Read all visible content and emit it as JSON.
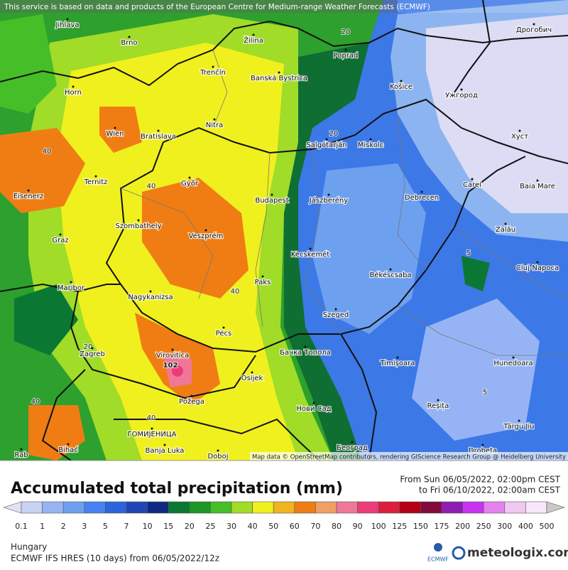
{
  "notice": "This service is based on data and products of the European Centre for Medium-range Weather Forecasts (ECMWF)",
  "attribution": "Map data © OpenStreetMap contributors, rendering GIScience Research Group @ Heidelberg University",
  "cities": [
    "Jihlava",
    "Brno",
    "Žilina",
    "Poprad",
    "Дрогобич",
    "Trenčín",
    "Banská Bystrica",
    "Košice",
    "Ужгород",
    "Horn",
    "Wien",
    "Bratislava",
    "Nitra",
    "Salgótarján",
    "Miskolc",
    "Хуст",
    "Eisenerz",
    "Ternitz",
    "Győr",
    "Budapest",
    "Jászberény",
    "Debrecen",
    "Carei",
    "Baia Mare",
    "Graz",
    "Szombathely",
    "Veszprém",
    "Zalău",
    "Kecskemét",
    "Cluj-Napoca",
    "Maribor",
    "Nagykanizsa",
    "Paks",
    "Békéscsaba",
    "Szeged",
    "Pécs",
    "Virovitica",
    "Бачка Топола",
    "Zagreb",
    "Osijek",
    "Timișoara",
    "Hunedoara",
    "Požega",
    "Нови Сад",
    "Reșița",
    "Târgu Jiu",
    "ГОМИЈЕНИЦА",
    "Banja Luka",
    "Bihać",
    "Doboj",
    "Београд",
    "Drobeta",
    "Rab"
  ],
  "contour_labels": [
    40,
    20,
    20,
    40,
    40,
    20,
    40,
    40,
    5,
    5,
    102
  ],
  "legend": {
    "title": "Accumulated total precipitation (mm)",
    "period_from": "From Sun 06/05/2022, 02:00pm CEST",
    "period_to": "to Fri 06/10/2022, 02:00am CEST",
    "labels": [
      0.1,
      1,
      2,
      3,
      5,
      7,
      10,
      15,
      20,
      25,
      30,
      40,
      50,
      60,
      70,
      80,
      90,
      100,
      125,
      150,
      175,
      200,
      250,
      300,
      400,
      500
    ],
    "colors": [
      "#c8d2f5",
      "#96b4f5",
      "#6ea0f0",
      "#4682f0",
      "#2d64dc",
      "#1e46b4",
      "#0f2882",
      "#0a7832",
      "#1e9628",
      "#46be28",
      "#a0dc28",
      "#f0f01e",
      "#f0b41e",
      "#f07d14",
      "#f0a064",
      "#f07896",
      "#eb3c78",
      "#dc1e3c",
      "#b40014",
      "#820a3c",
      "#8c1eb4",
      "#c832f0",
      "#e682f0",
      "#f0c8f0",
      "#fae6fa"
    ],
    "under_color": "#e1e1f5",
    "over_color": "#c8c8c8"
  },
  "footer": {
    "region": "Hungary",
    "model": "ECMWF IFS HRES (10 days) from 06/05/2022/12z",
    "logo": "ECMWF",
    "brand": "meteologix.com"
  }
}
